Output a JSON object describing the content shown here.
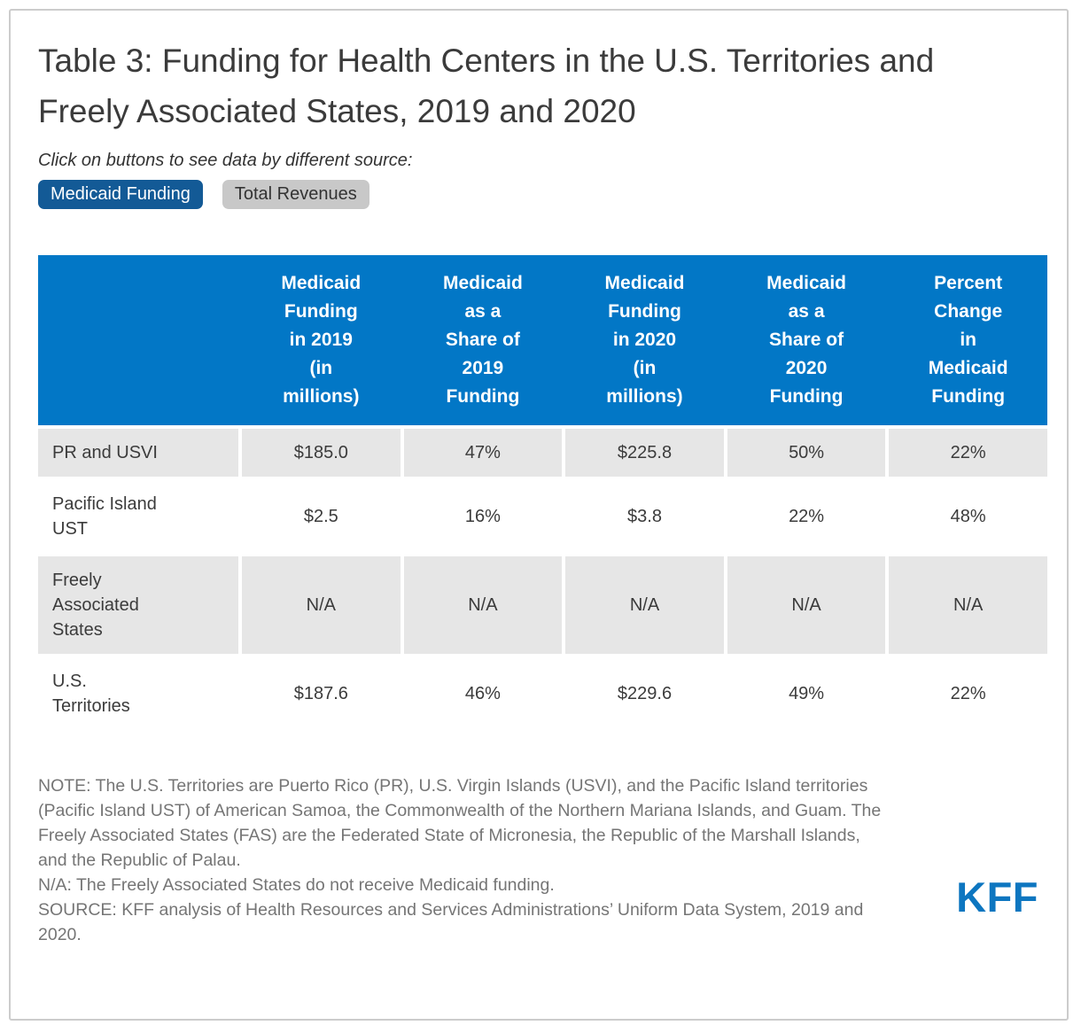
{
  "title": "Table 3: Funding for Health Centers in the U.S. Territories and Freely Associated States, 2019 and 2020",
  "subtitle": "Click on buttons to see data by different source:",
  "buttons": [
    {
      "label": "Medicaid Funding",
      "active": true
    },
    {
      "label": "Total Revenues",
      "active": false
    }
  ],
  "chart_data": {
    "type": "table",
    "title": "Funding for Health Centers in the U.S. Territories and Freely Associated States, 2019 and 2020",
    "columns": [
      "",
      "Medicaid Funding in 2019 (in millions)",
      "Medicaid as a Share of 2019 Funding",
      "Medicaid Funding in 2020 (in millions)",
      "Medicaid as a Share of 2020 Funding",
      "Percent Change in Medicaid Funding"
    ],
    "rows": [
      {
        "label": "PR and USVI",
        "values": [
          "$185.0",
          "47%",
          "$225.8",
          "50%",
          "22%"
        ]
      },
      {
        "label": "Pacific Island UST",
        "values": [
          "$2.5",
          "16%",
          "$3.8",
          "22%",
          "48%"
        ]
      },
      {
        "label": "Freely Associated States",
        "values": [
          "N/A",
          "N/A",
          "N/A",
          "N/A",
          "N/A"
        ]
      },
      {
        "label": "U.S. Territories",
        "values": [
          "$187.6",
          "46%",
          "$229.6",
          "49%",
          "22%"
        ]
      }
    ]
  },
  "display": {
    "header_cells": [
      "",
      "Medicaid\nFunding\nin 2019\n(in\nmillions)",
      "Medicaid\nas a\nShare of\n2019\nFunding",
      "Medicaid\nFunding\nin 2020\n(in\nmillions)",
      "Medicaid\nas a\nShare of\n2020\nFunding",
      "Percent\nChange\nin\nMedicaid\nFunding"
    ],
    "row_labels": [
      "PR and USVI",
      "Pacific Island\nUST",
      "Freely\nAssociated\nStates",
      "U.S.\nTerritories"
    ]
  },
  "notes": {
    "note": "NOTE: The U.S. Territories are Puerto Rico (PR), U.S. Virgin Islands (USVI), and the Pacific Island territories (Pacific Island UST) of American Samoa, the Commonwealth of the Northern Mariana Islands, and Guam. The Freely Associated States (FAS) are the Federated State of Micronesia, the Republic of the Marshall Islands, and the Republic of Palau.",
    "na_note": "N/A: The Freely Associated States do not receive Medicaid funding.",
    "source": "SOURCE: KFF analysis of Health Resources and Services Administrations’ Uniform Data System, 2019 and 2020."
  },
  "logo_text": "KFF",
  "colors": {
    "header_blue": "#0277c6",
    "active_button_blue": "#135a96",
    "inactive_button_gray": "#c8c8c8",
    "row_stripe_gray": "#e6e6e6",
    "logo_blue": "#0d76c0",
    "note_gray": "#757575",
    "text_dark": "#3b3b3b",
    "border_gray": "#cccccc"
  }
}
